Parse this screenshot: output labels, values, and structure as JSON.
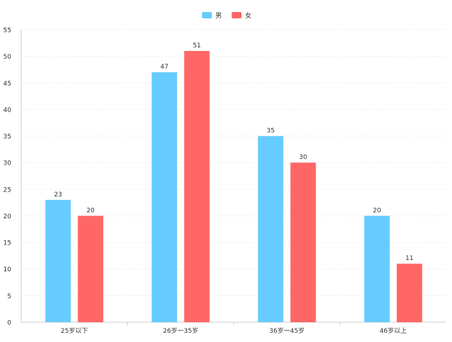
{
  "colors": {
    "male": "#66CCFF",
    "female": "#FF6666",
    "axis": "#CCCCCC",
    "grid": "#EEEEEE",
    "text": "#333333"
  },
  "chart_data": {
    "type": "bar",
    "title": "",
    "xlabel": "",
    "ylabel": "",
    "categories": [
      "25岁以下",
      "26岁一35岁",
      "36岁一45岁",
      "46岁以上"
    ],
    "series": [
      {
        "name": "男",
        "values": [
          23,
          47,
          35,
          20
        ]
      },
      {
        "name": "女",
        "values": [
          20,
          51,
          30,
          11
        ]
      }
    ],
    "ylim": [
      0,
      55
    ],
    "yticks": [
      0,
      5,
      10,
      15,
      20,
      25,
      30,
      35,
      40,
      45,
      50,
      55
    ],
    "legend_position": "top-center",
    "grid": true,
    "data_labels": true
  }
}
